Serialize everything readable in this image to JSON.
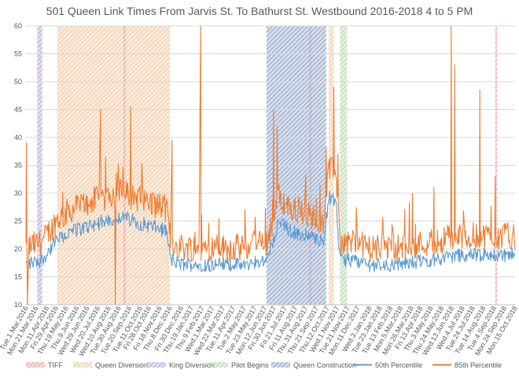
{
  "chart_data": {
    "type": "line",
    "title": "501 Queen Link Times From Jarvis St. To Bathurst St. Westbound 2016-2018 4 to 5 PM",
    "ylim": [
      10,
      60
    ],
    "yticks": [
      10,
      15,
      20,
      25,
      30,
      35,
      40,
      45,
      50,
      55,
      60
    ],
    "xlim": [
      "2016-03-01",
      "2018-10-15"
    ],
    "xticks": [
      "Tue.1.Mar.2016",
      "Mon.21.Mar.2016",
      "Mon.11.Apr.2016",
      "Fri.29.Apr.2016",
      "Thu.19.May.2016",
      "Thu.9.Jun.2016",
      "Wed.29.Jun.2016",
      "Wed.20.Jul.2016",
      "Wed.10.Aug.2016",
      "Tue.30.Aug.2016",
      "Tue.20.Sep.2016",
      "Tue.11.Oct.2016",
      "Fri.28.Oct.2016",
      "Fri.18.Nov.2016",
      "Thu.8.Dec.2016",
      "Fri.30.Dec.2016",
      "Thu.19.Jan.2017",
      "Thu.9.Feb.2017",
      "Wed.1.Mar.2017",
      "Wed.22.Mar.2017",
      "Tue.11.Apr.2017",
      "Tue.2.May.2017",
      "Tue.23.May.2017",
      "Mon.12.Jun.2017",
      "Fri.30.Jun.2017",
      "Fri.21.Jul.2017",
      "Fri.11.Aug.2017",
      "Thu.31.Aug.2017",
      "Thu.21.Sep.2017",
      "Thu.12.Oct.2017",
      "Wed.1.Nov.2017",
      "Tue.21.Nov.2017",
      "Mon.11.Dec.2017",
      "Wed.3.Jan.2018",
      "Tue.23.Jan.2018",
      "Tue.13.Feb.2018",
      "Mon.5.Mar.2018",
      "Mon.26.Mar.2018",
      "Fri.13.Apr.2018",
      "Thu.3.May.2018",
      "Thu.24.May.2018",
      "Wed.13.Jun.2018",
      "Wed.4.Jul.2018",
      "Tue.24.Jul.2018",
      "Tue.14.Aug.2018",
      "Tue.4.Sep.2018",
      "Mon.24.Sep.2018",
      "Mon.15.Oct.2018"
    ],
    "bands": [
      {
        "name": "King Diversion",
        "color": "#b4a7d6",
        "ranges": [
          [
            "2016-03-23",
            "2016-04-02"
          ]
        ]
      },
      {
        "name": "Queen Diversion",
        "color": "#f4c7a1",
        "ranges": [
          [
            "2016-05-01",
            "2016-12-08"
          ],
          [
            "2017-10-15",
            "2017-10-25"
          ]
        ]
      },
      {
        "name": "TIFF",
        "color": "#e6a0a0",
        "ranges": [
          [
            "2016-09-08",
            "2016-09-12"
          ],
          [
            "2017-09-07",
            "2017-09-11"
          ],
          [
            "2018-09-06",
            "2018-09-10"
          ]
        ]
      },
      {
        "name": "Queen Construction",
        "color": "#8fa3c7",
        "ranges": [
          [
            "2017-06-15",
            "2017-10-10"
          ]
        ]
      },
      {
        "name": "Pilot Begins",
        "color": "#b6d7a8",
        "ranges": [
          [
            "2017-11-06",
            "2017-11-20"
          ]
        ]
      }
    ],
    "series": [
      {
        "name": "50th Percentile",
        "color": "#5b9bd5",
        "x": [],
        "values": []
      },
      {
        "name": "85th Percentile",
        "color": "#ed7d31",
        "x": [],
        "values": []
      }
    ],
    "profile_85_control_points": [
      [
        "2016-03-01",
        20
      ],
      [
        "2016-04-01",
        21
      ],
      [
        "2016-05-01",
        25
      ],
      [
        "2016-06-01",
        27
      ],
      [
        "2016-07-01",
        28
      ],
      [
        "2016-08-01",
        29
      ],
      [
        "2016-09-01",
        30
      ],
      [
        "2016-10-01",
        29
      ],
      [
        "2016-11-01",
        28
      ],
      [
        "2016-12-01",
        27
      ],
      [
        "2016-12-10",
        21
      ],
      [
        "2017-01-01",
        20
      ],
      [
        "2017-03-01",
        20
      ],
      [
        "2017-05-01",
        20
      ],
      [
        "2017-06-15",
        21
      ],
      [
        "2017-07-10",
        29
      ],
      [
        "2017-08-01",
        27
      ],
      [
        "2017-09-01",
        26
      ],
      [
        "2017-10-05",
        25
      ],
      [
        "2017-10-15",
        34
      ],
      [
        "2017-10-30",
        33
      ],
      [
        "2017-11-05",
        21
      ],
      [
        "2017-12-01",
        21
      ],
      [
        "2018-01-01",
        20
      ],
      [
        "2018-03-01",
        20
      ],
      [
        "2018-05-01",
        21
      ],
      [
        "2018-07-01",
        22
      ],
      [
        "2018-09-01",
        22
      ],
      [
        "2018-10-15",
        22
      ]
    ]
  },
  "legend": [
    {
      "label": "TIFF",
      "type": "band",
      "color": "#e6a0a0"
    },
    {
      "label": "Queen Diversion",
      "type": "band",
      "color": "#f4c7a1"
    },
    {
      "label": "King Diversion",
      "type": "band",
      "color": "#b4a7d6"
    },
    {
      "label": "Pilot Begins",
      "type": "band",
      "color": "#b6d7a8"
    },
    {
      "label": "Queen Construction",
      "type": "band",
      "color": "#8fa3c7"
    },
    {
      "label": "50th Percentile",
      "type": "line",
      "color": "#5b9bd5"
    },
    {
      "label": "85th Percentile",
      "type": "line",
      "color": "#ed7d31"
    }
  ]
}
